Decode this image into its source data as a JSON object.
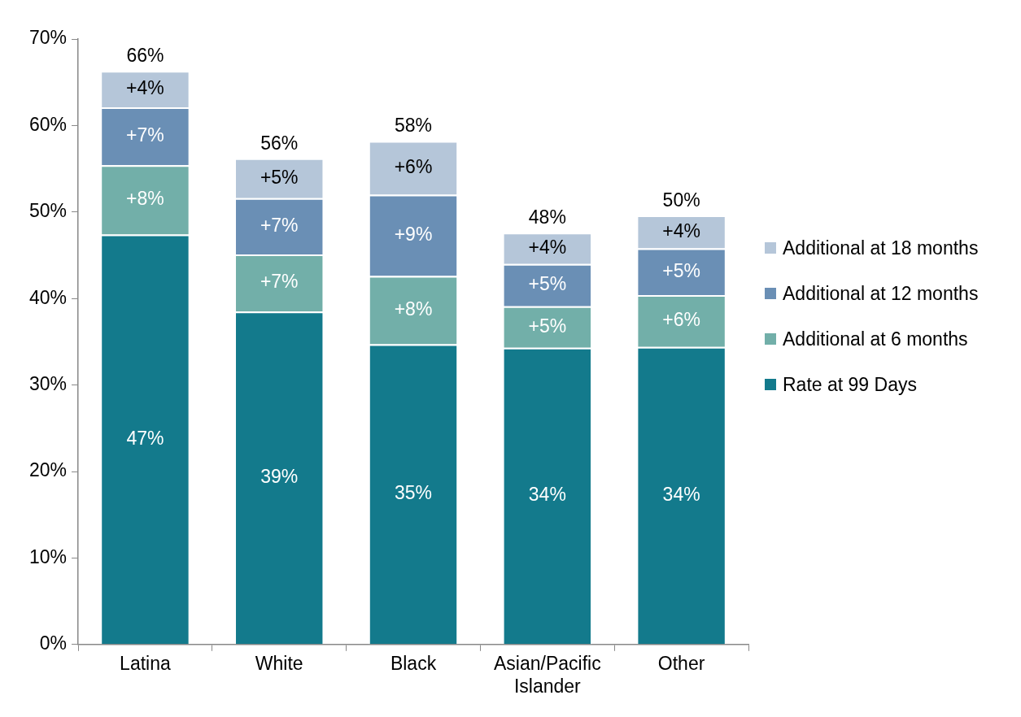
{
  "chart_data": {
    "type": "bar",
    "stacked": true,
    "categories": [
      "Latina",
      "White",
      "Black",
      "Asian/Pacific Islander",
      "Other"
    ],
    "series": [
      {
        "name": "Rate at 99 Days",
        "color": "#137a8c",
        "values": [
          47.4,
          38.5,
          34.7,
          34.3,
          34.4
        ],
        "value_labels": [
          "47%",
          "39%",
          "35%",
          "34%",
          "34%"
        ]
      },
      {
        "name": "Additional at 6 months",
        "color": "#72afa9",
        "values": [
          8.0,
          6.6,
          7.9,
          4.8,
          6.0
        ],
        "value_labels": [
          "+8%",
          "+7%",
          "+8%",
          "+5%",
          "+6%"
        ]
      },
      {
        "name": "Additional at 12 months",
        "color": "#6a8fb5",
        "values": [
          6.7,
          6.5,
          9.4,
          4.9,
          5.4
        ],
        "value_labels": [
          "+7%",
          "+7%",
          "+9%",
          "+5%",
          "+5%"
        ]
      },
      {
        "name": "Additional at 18 months",
        "color": "#b5c6d9",
        "values": [
          4.2,
          4.6,
          6.2,
          3.6,
          3.8
        ],
        "value_labels": [
          "+4%",
          "+5%",
          "+6%",
          "+4%",
          "+4%"
        ]
      }
    ],
    "totals": [
      "66%",
      "56%",
      "58%",
      "48%",
      "50%"
    ],
    "ylim": [
      0,
      70
    ],
    "yticks": [
      {
        "value": 0,
        "label": "0%"
      },
      {
        "value": 10,
        "label": "10%"
      },
      {
        "value": 20,
        "label": "20%"
      },
      {
        "value": 30,
        "label": "30%"
      },
      {
        "value": 40,
        "label": "40%"
      },
      {
        "value": 50,
        "label": "50%"
      },
      {
        "value": 60,
        "label": "60%"
      },
      {
        "value": 70,
        "label": "70%"
      }
    ],
    "grid": false,
    "legend": "right"
  }
}
